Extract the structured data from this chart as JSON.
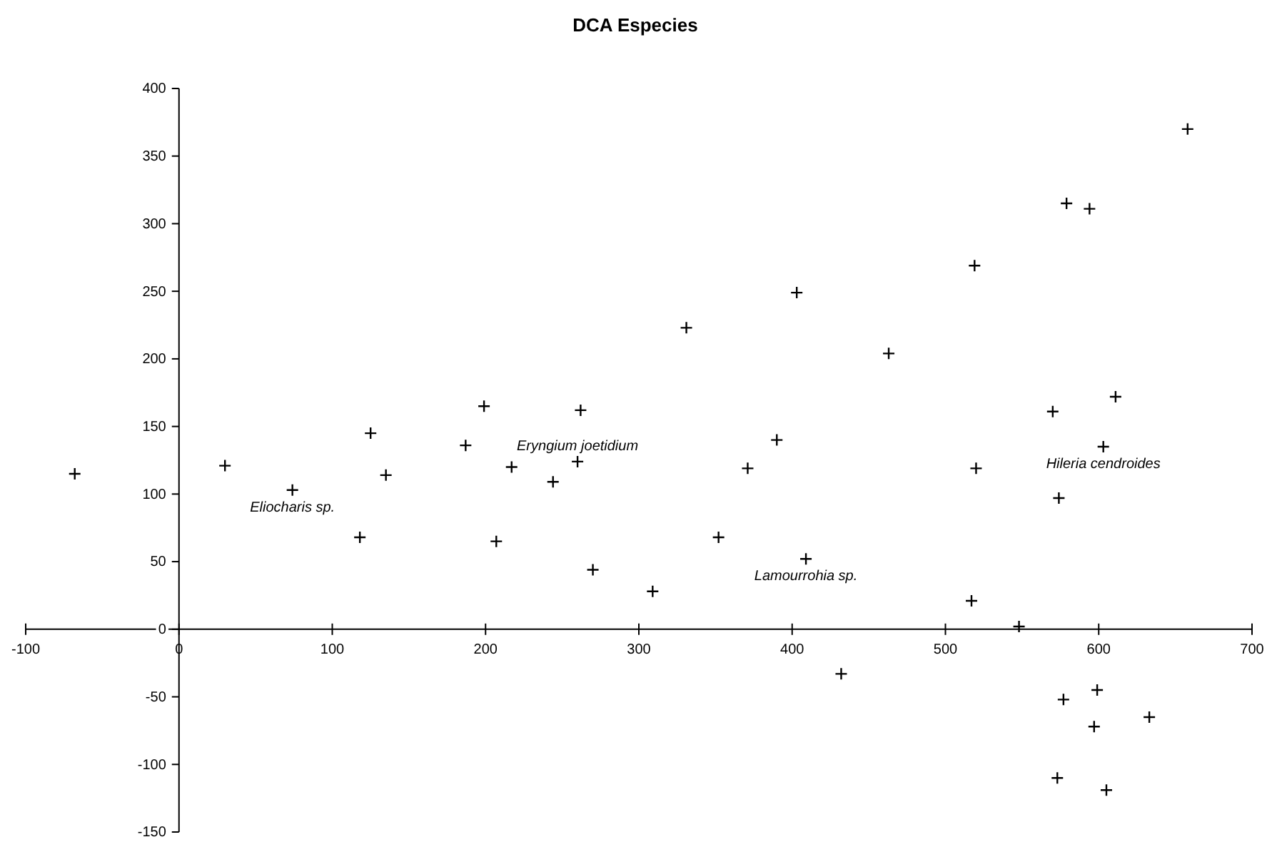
{
  "chart_data": {
    "type": "scatter",
    "title": "DCA Especies",
    "x": [
      -68,
      30,
      74,
      125,
      135,
      118,
      199,
      262,
      187,
      217,
      260,
      244,
      390,
      371,
      207,
      352,
      409,
      270,
      309,
      403,
      331,
      658,
      579,
      594,
      519,
      463,
      611,
      570,
      603,
      520,
      574,
      517,
      548,
      432,
      599,
      577,
      633,
      597,
      573,
      605
    ],
    "series": [
      {
        "color": "#000000",
        "values": [
          115,
          121,
          103,
          145,
          114,
          68,
          165,
          162,
          136,
          120,
          124,
          109,
          140,
          119,
          65,
          68,
          52,
          44,
          28,
          249,
          223,
          370,
          315,
          311,
          269,
          204,
          172,
          161,
          135,
          119,
          97,
          21,
          2,
          -33,
          -45,
          -52,
          -65,
          -72,
          -110,
          -119
        ]
      }
    ],
    "xlim": [
      -100,
      700
    ],
    "xticks": [
      -100,
      0,
      100,
      200,
      300,
      400,
      500,
      600,
      700
    ],
    "ylim": [
      -150,
      400
    ],
    "yticks": [
      -150,
      -100,
      -50,
      0,
      50,
      100,
      150,
      200,
      250,
      300,
      350,
      400
    ],
    "marker": "cross",
    "grid": false,
    "annotations": [
      {
        "text": "Eliocharis sp.",
        "x": 74,
        "y": 103
      },
      {
        "text": "Eryngium joetidium",
        "x": 260,
        "y": 124
      },
      {
        "text": "Lamourrohia sp.",
        "x": 409,
        "y": 52
      },
      {
        "text": "Hileria cendroides",
        "x": 603,
        "y": 135
      }
    ]
  }
}
